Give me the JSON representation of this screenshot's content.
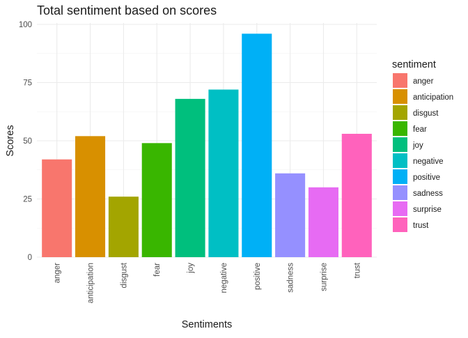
{
  "chart_data": {
    "type": "bar",
    "title": "Total sentiment based on scores",
    "xlabel": "Sentiments",
    "ylabel": "Scores",
    "categories": [
      "anger",
      "anticipation",
      "disgust",
      "fear",
      "joy",
      "negative",
      "positive",
      "sadness",
      "surprise",
      "trust"
    ],
    "values": [
      42,
      52,
      26,
      49,
      68,
      72,
      96,
      36,
      30,
      53
    ],
    "colors": [
      "#F8766D",
      "#D89000",
      "#A3A500",
      "#39B600",
      "#00BF7D",
      "#00BFC4",
      "#00B0F6",
      "#9590FF",
      "#E76BF3",
      "#FF62BC"
    ],
    "ylim": [
      0,
      100
    ],
    "yticks": [
      0,
      25,
      50,
      75,
      100
    ],
    "grid": true,
    "legend": {
      "title": "sentiment",
      "placement": "right"
    }
  }
}
